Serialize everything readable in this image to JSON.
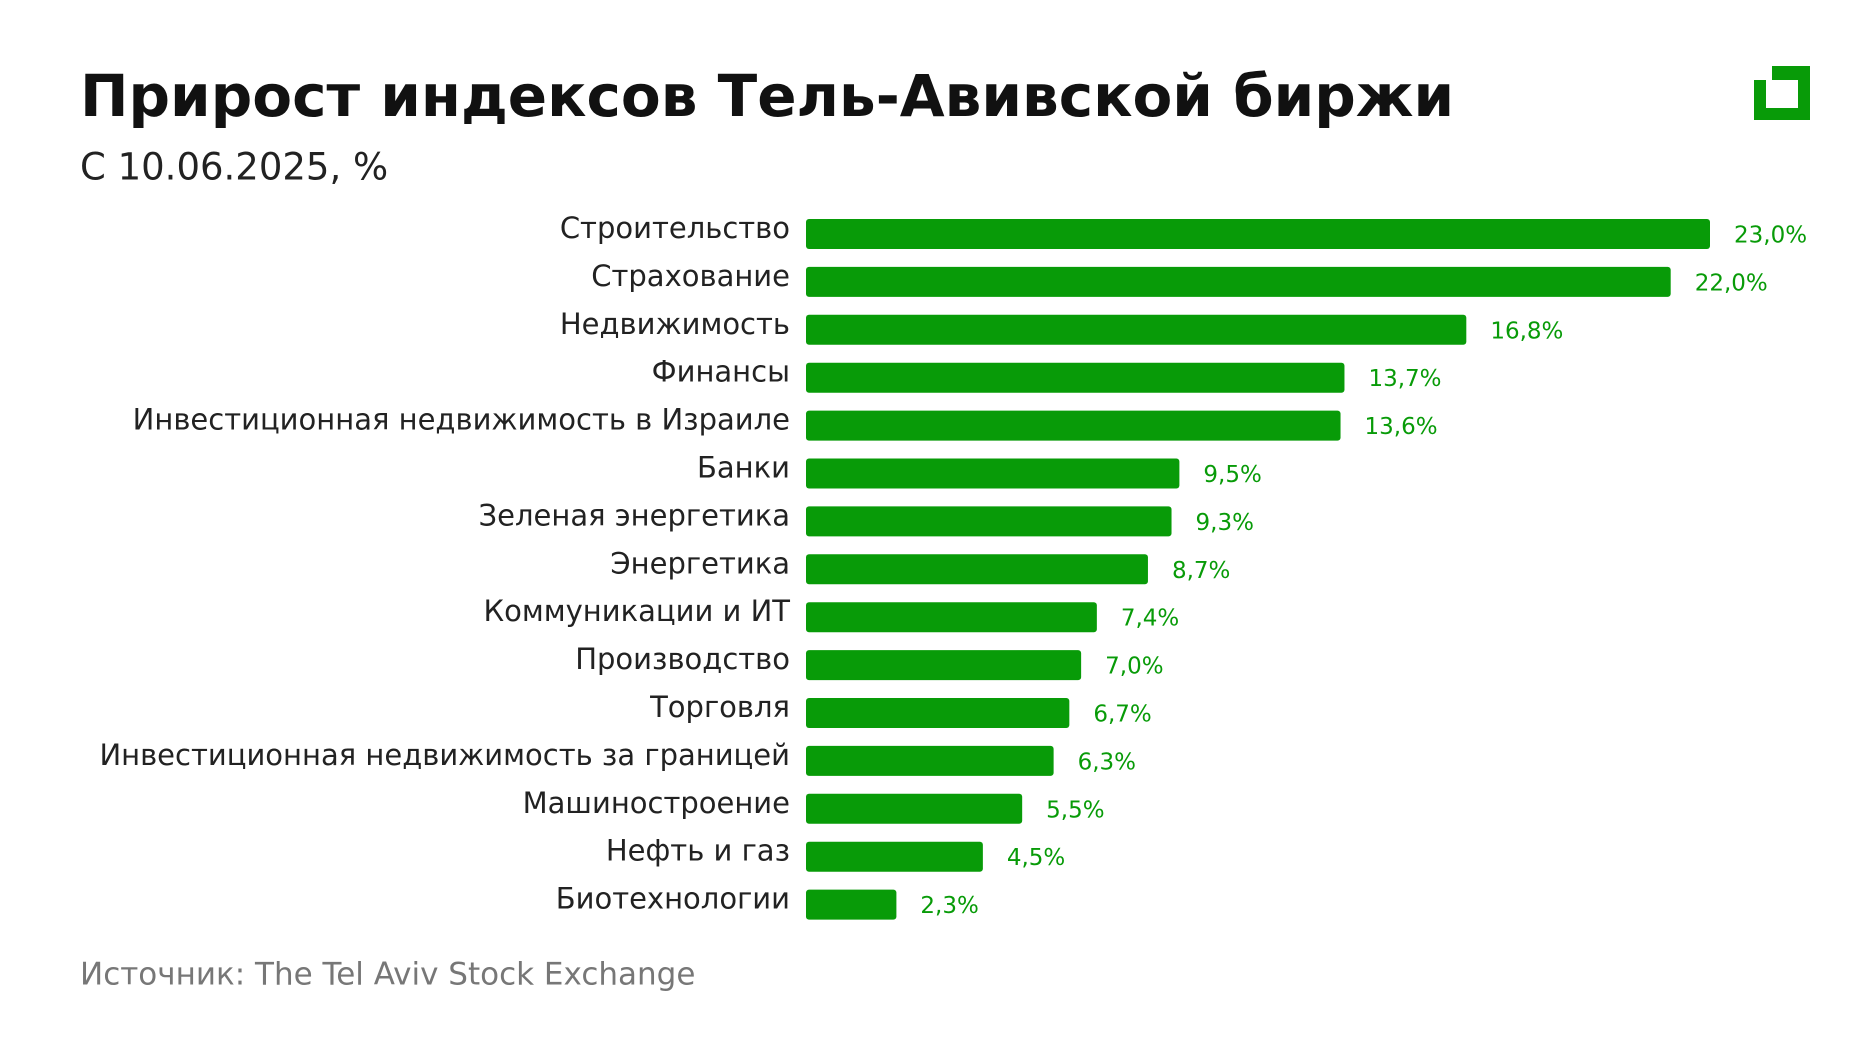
{
  "chart_data": {
    "type": "barh",
    "title": "Прирост индексов Тель-Авивской биржи",
    "subtitle": "С 10.06.2025, %",
    "source": "Источник: The Tel Aviv Stock Exchange",
    "color": "#089b08",
    "categories": [
      "Строительство",
      "Страхование",
      "Недвижимость",
      "Финансы",
      "Инвестиционная недвижимость в Израиле",
      "Банки",
      "Зеленая энергетика",
      "Энергетика",
      "Коммуникации и ИТ",
      "Производство",
      "Торговля",
      "Инвестиционная недвижимость за границей",
      "Машиностроение",
      "Нефть и газ",
      "Биотехнологии"
    ],
    "values": [
      23.0,
      22.0,
      16.8,
      13.7,
      13.6,
      9.5,
      9.3,
      8.7,
      7.4,
      7.0,
      6.7,
      6.3,
      5.5,
      4.5,
      2.3
    ],
    "value_labels": [
      "23,0%",
      "22,0%",
      "16,8%",
      "13,7%",
      "13,6%",
      "9,5%",
      "9,3%",
      "8,7%",
      "7,4%",
      "7,0%",
      "6,7%",
      "6,3%",
      "5,5%",
      "4,5%",
      "2,3%"
    ]
  }
}
